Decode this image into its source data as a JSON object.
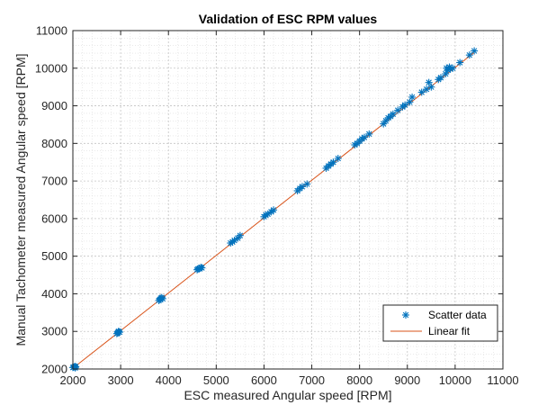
{
  "chart_data": {
    "type": "scatter",
    "title": "Validation of ESC RPM values",
    "xlabel": "ESC measured Angular speed [RPM]",
    "ylabel": "Manual Tachometer measured Angular speed [RPM]",
    "xlim": [
      2000,
      11000
    ],
    "ylim": [
      2000,
      11000
    ],
    "xticks": [
      "2000",
      "3000",
      "4000",
      "5000",
      "6000",
      "7000",
      "8000",
      "9000",
      "10000",
      "11000"
    ],
    "yticks": [
      "2000",
      "3000",
      "4000",
      "5000",
      "6000",
      "7000",
      "8000",
      "9000",
      "10000",
      "11000"
    ],
    "grid": "major and minor, dotted",
    "legend_position": "lower-right",
    "colors": {
      "scatter": "#0072BD",
      "fit": "#D95319"
    },
    "series": [
      {
        "name": "Scatter data",
        "kind": "scatter",
        "marker": "asterisk",
        "points": [
          [
            2000,
            2040
          ],
          [
            2020,
            2050
          ],
          [
            2040,
            2070
          ],
          [
            2050,
            2030
          ],
          [
            2060,
            2060
          ],
          [
            2920,
            2940
          ],
          [
            2940,
            2960
          ],
          [
            2950,
            2990
          ],
          [
            2960,
            3000
          ],
          [
            2980,
            2980
          ],
          [
            3800,
            3820
          ],
          [
            3820,
            3850
          ],
          [
            3840,
            3880
          ],
          [
            3860,
            3900
          ],
          [
            3880,
            3870
          ],
          [
            4600,
            4640
          ],
          [
            4620,
            4660
          ],
          [
            4650,
            4680
          ],
          [
            4680,
            4700
          ],
          [
            4700,
            4690
          ],
          [
            5300,
            5350
          ],
          [
            5340,
            5380
          ],
          [
            5380,
            5420
          ],
          [
            5450,
            5480
          ],
          [
            5500,
            5550
          ],
          [
            6000,
            6050
          ],
          [
            6040,
            6100
          ],
          [
            6080,
            6120
          ],
          [
            6150,
            6180
          ],
          [
            6200,
            6230
          ],
          [
            6700,
            6740
          ],
          [
            6750,
            6800
          ],
          [
            6800,
            6850
          ],
          [
            6900,
            6920
          ],
          [
            7300,
            7340
          ],
          [
            7350,
            7400
          ],
          [
            7400,
            7450
          ],
          [
            7450,
            7500
          ],
          [
            7550,
            7600
          ],
          [
            7900,
            7960
          ],
          [
            7950,
            8000
          ],
          [
            8000,
            8060
          ],
          [
            8050,
            8120
          ],
          [
            8100,
            8160
          ],
          [
            8200,
            8250
          ],
          [
            8500,
            8520
          ],
          [
            8550,
            8600
          ],
          [
            8600,
            8680
          ],
          [
            8650,
            8720
          ],
          [
            8700,
            8780
          ],
          [
            8800,
            8880
          ],
          [
            8900,
            8970
          ],
          [
            8950,
            9020
          ],
          [
            9050,
            9100
          ],
          [
            9100,
            9230
          ],
          [
            9300,
            9360
          ],
          [
            9400,
            9440
          ],
          [
            9450,
            9620
          ],
          [
            9500,
            9500
          ],
          [
            9650,
            9700
          ],
          [
            9700,
            9750
          ],
          [
            9800,
            9850
          ],
          [
            9820,
            10000
          ],
          [
            9850,
            9950
          ],
          [
            9880,
            10030
          ],
          [
            9900,
            9980
          ],
          [
            9950,
            10000
          ],
          [
            10100,
            10150
          ],
          [
            10300,
            10350
          ],
          [
            10400,
            10460
          ]
        ]
      },
      {
        "name": "Linear fit",
        "kind": "line",
        "x": [
          2000,
          10400
        ],
        "y": [
          2020,
          10420
        ]
      }
    ]
  }
}
